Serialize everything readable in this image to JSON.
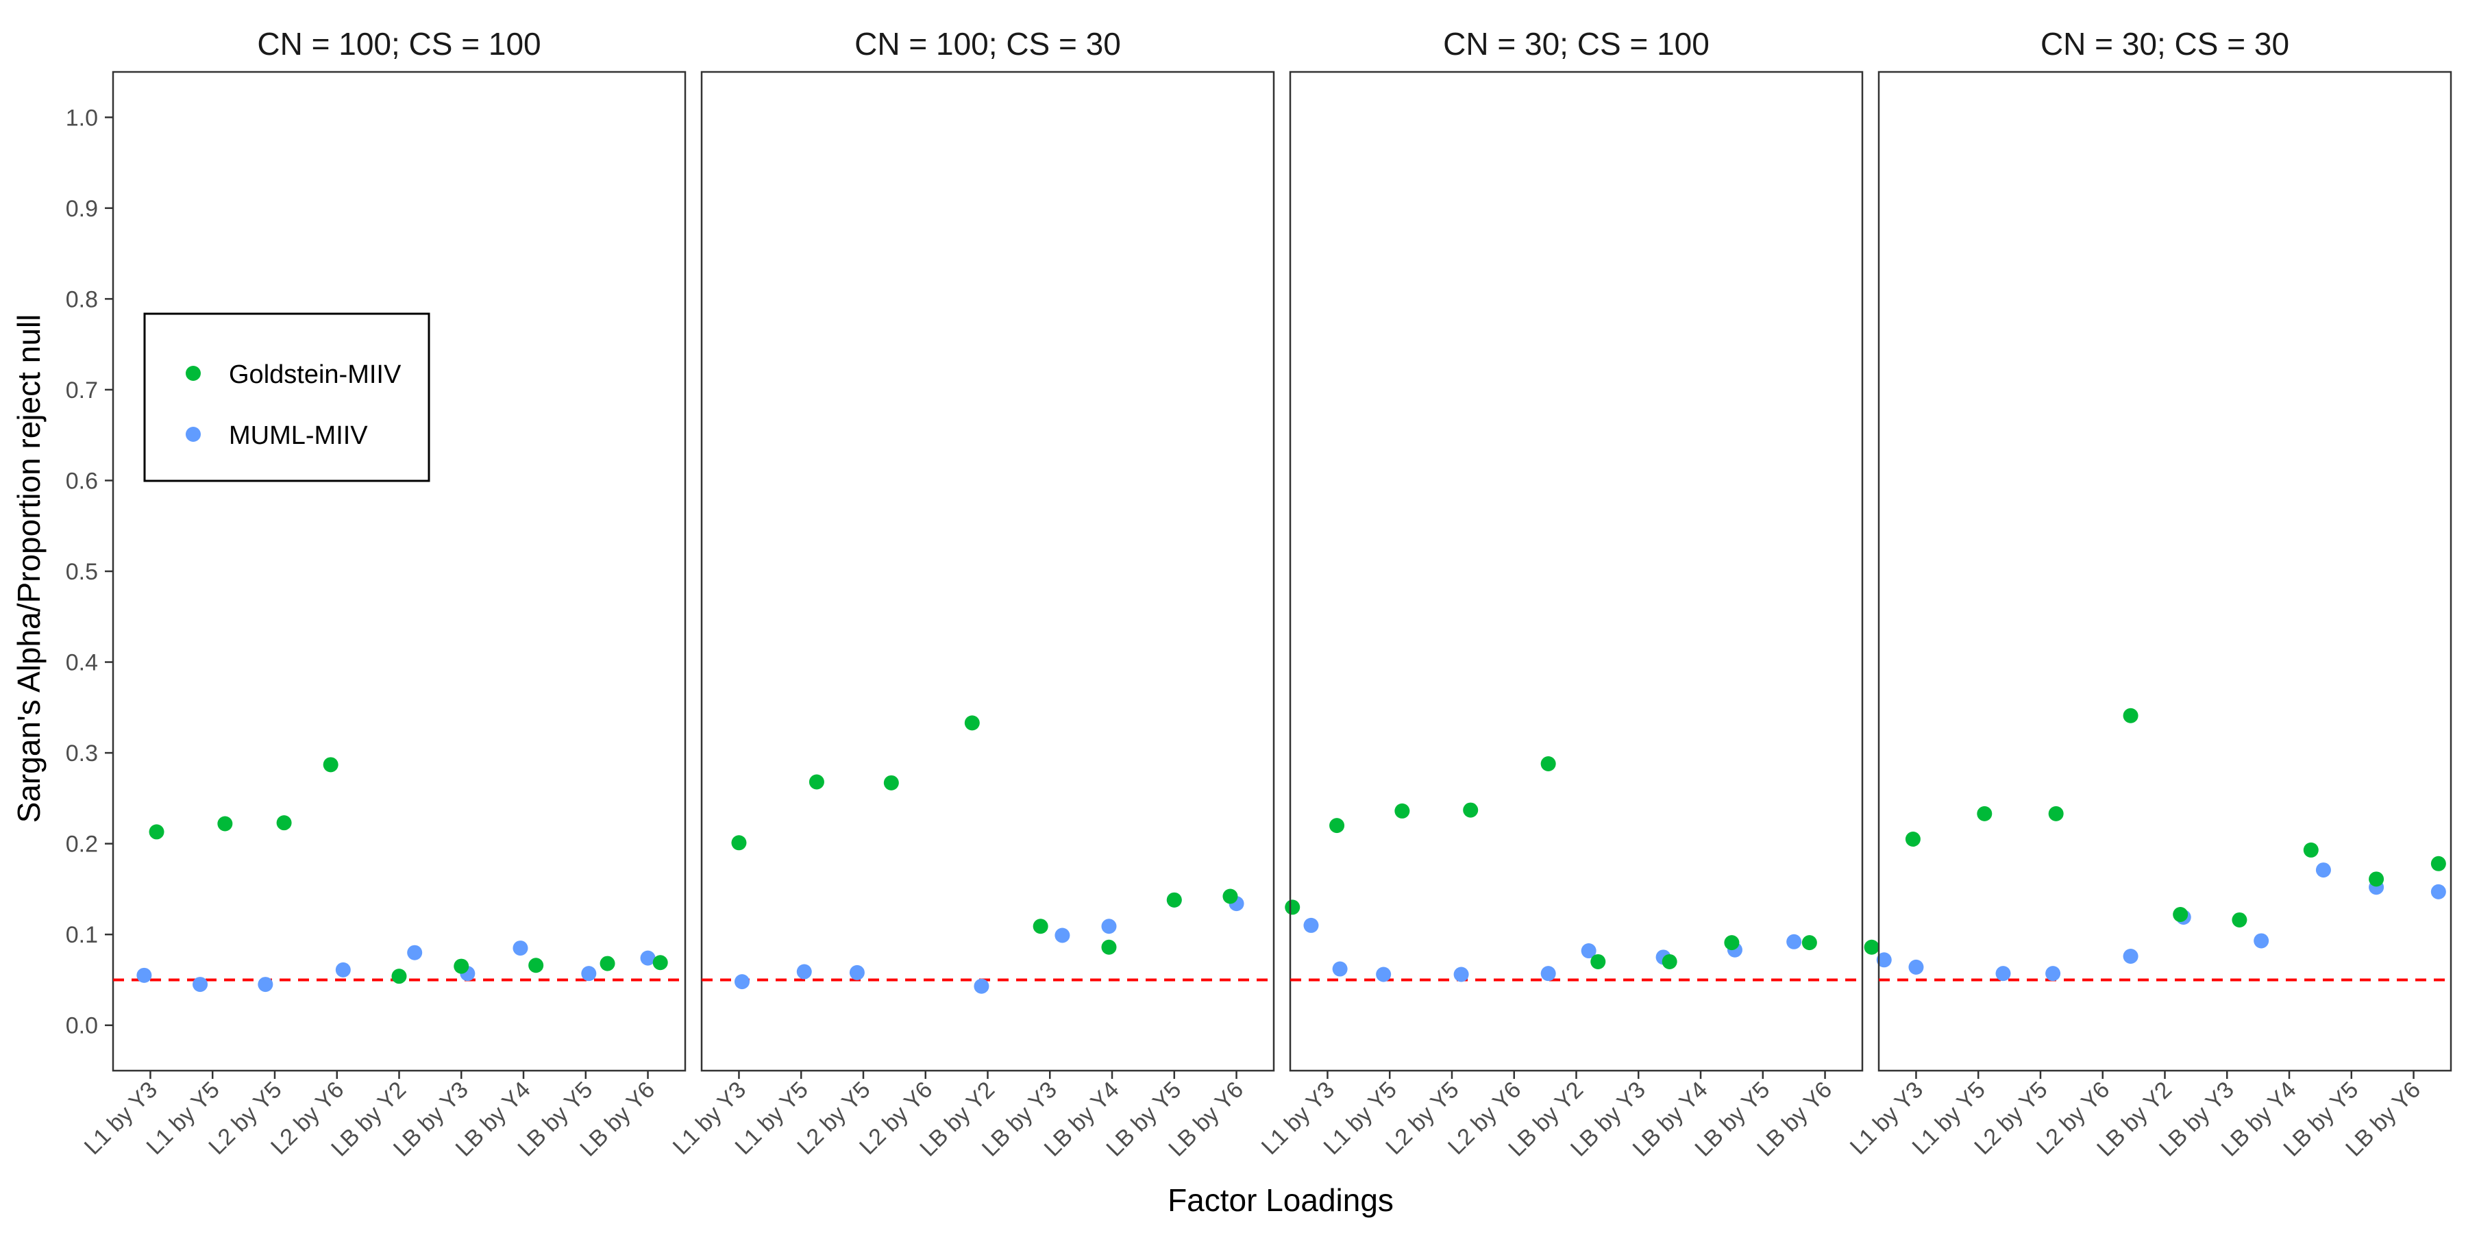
{
  "chart_data": {
    "type": "scatter",
    "ylabel": "Sargan's Alpha/Proportion reject null",
    "xlabel": "Factor Loadings",
    "ylim": [
      -0.05,
      1.05
    ],
    "yticks": [
      "0.0",
      "0.1",
      "0.2",
      "0.3",
      "0.4",
      "0.5",
      "0.6",
      "0.7",
      "0.8",
      "0.9",
      "1.0"
    ],
    "categories": [
      "L1 by Y3",
      "L1 by Y5",
      "L2 by Y5",
      "L2 by Y6",
      "LB by Y2",
      "LB by Y3",
      "LB by Y4",
      "LB by Y5",
      "LB by Y6"
    ],
    "reference_line": {
      "y": 0.05,
      "color": "#ff0000",
      "style": "dashed"
    },
    "grid": false,
    "legend_position": "left",
    "series_meta": [
      {
        "name": "Goldstein-MIIV",
        "color": "#00ba38"
      },
      {
        "name": "MUML-MIIV",
        "color": "#619cff"
      }
    ],
    "panels": [
      {
        "title": "CN = 100; CS = 100",
        "series": [
          {
            "name": "Goldstein-MIIV",
            "x": [
              0.1,
              1.2,
              2.15,
              2.9,
              4.0,
              5.0,
              6.2,
              7.35,
              8.2
            ],
            "values": [
              0.213,
              0.222,
              0.223,
              0.287,
              0.054,
              0.065,
              0.066,
              0.068,
              0.069
            ]
          },
          {
            "name": "MUML-MIIV",
            "x": [
              -0.1,
              0.8,
              1.85,
              3.1,
              4.25,
              5.1,
              5.95,
              7.05,
              8.0
            ],
            "values": [
              0.055,
              0.045,
              0.045,
              0.061,
              0.08,
              0.057,
              0.085,
              0.057,
              0.074
            ]
          }
        ]
      },
      {
        "title": "CN = 100; CS = 30",
        "series": [
          {
            "name": "Goldstein-MIIV",
            "x": [
              0.0,
              1.25,
              2.45,
              3.75,
              4.85,
              5.95,
              7.0,
              7.9,
              8.9
            ],
            "values": [
              0.201,
              0.268,
              0.267,
              0.333,
              0.109,
              0.086,
              0.138,
              0.142,
              0.13
            ]
          },
          {
            "name": "MUML-MIIV",
            "x": [
              0.05,
              1.05,
              1.9,
              3.9,
              5.2,
              5.95,
              7.0,
              8.0,
              9.2
            ],
            "values": [
              0.048,
              0.059,
              0.058,
              0.043,
              0.099,
              0.109,
              0.138,
              0.134,
              0.11
            ]
          }
        ]
      },
      {
        "title": "CN = 30; CS = 100",
        "series": [
          {
            "name": "Goldstein-MIIV",
            "x": [
              0.15,
              1.2,
              2.3,
              3.55,
              4.35,
              5.5,
              6.5,
              7.75,
              8.75
            ],
            "values": [
              0.22,
              0.236,
              0.237,
              0.288,
              0.07,
              0.07,
              0.091,
              0.091,
              0.086
            ]
          },
          {
            "name": "MUML-MIIV",
            "x": [
              0.2,
              0.9,
              2.15,
              3.55,
              4.2,
              5.4,
              6.55,
              7.5,
              8.95
            ],
            "values": [
              0.062,
              0.056,
              0.056,
              0.057,
              0.082,
              0.075,
              0.083,
              0.092,
              0.072
            ]
          }
        ]
      },
      {
        "title": "CN = 30; CS = 30",
        "series": [
          {
            "name": "Goldstein-MIIV",
            "x": [
              -0.05,
              1.1,
              2.25,
              3.45,
              4.25,
              5.2,
              6.35,
              7.4,
              8.4
            ],
            "values": [
              0.205,
              0.233,
              0.233,
              0.341,
              0.122,
              0.116,
              0.193,
              0.161,
              0.178
            ]
          },
          {
            "name": "MUML-MIIV",
            "x": [
              0.0,
              1.4,
              2.2,
              3.45,
              4.3,
              5.55,
              6.55,
              7.4,
              8.4
            ],
            "values": [
              0.064,
              0.057,
              0.057,
              0.076,
              0.119,
              0.093,
              0.171,
              0.152,
              0.147
            ]
          }
        ]
      }
    ]
  }
}
